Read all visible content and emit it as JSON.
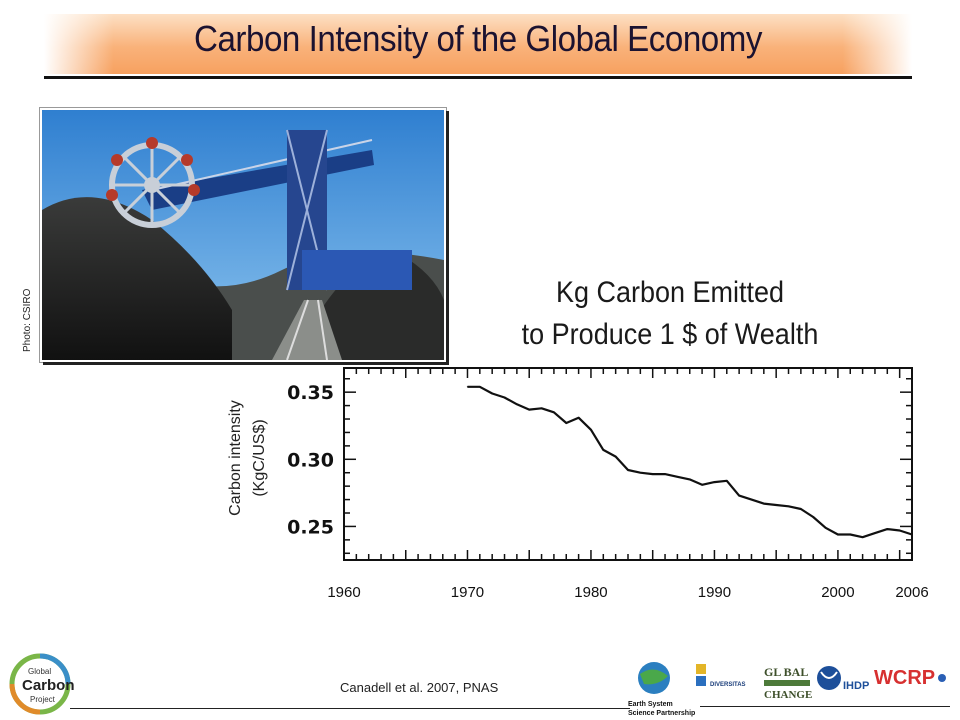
{
  "slide": {
    "title": "Carbon Intensity of the Global Economy",
    "photo_credit": "Photo: CSIRO",
    "subtitle_line1": "Kg Carbon Emitted",
    "subtitle_line2": "to Produce 1 $ of Wealth",
    "citation": "Canadell et al. 2007, PNAS"
  },
  "logos": {
    "gcp_line1": "Global",
    "gcp_line2": "Carbon",
    "gcp_line3": "Project",
    "essp_line1": "Earth System",
    "essp_line2": "Science Partnership",
    "diversitas": "DIVERSITAS",
    "global_change_1": "GL BAL",
    "global_change_2": "CHANGE",
    "ihdp": "IHDP",
    "wcrp": "WCRP"
  },
  "colors": {
    "line": "#111111",
    "title_band_top": "#fde0c4",
    "title_band_bottom": "#f7a160"
  },
  "chart_data": {
    "type": "line",
    "title": "",
    "ylabel_line1": "Carbon intensity",
    "ylabel_line2": "(KgC/US$)",
    "xlabel": "",
    "xlim": [
      1960,
      2006
    ],
    "ylim": [
      0.225,
      0.368
    ],
    "xticks": [
      1960,
      1970,
      1980,
      1990,
      2000,
      2006
    ],
    "yticks": [
      0.25,
      0.3,
      0.35
    ],
    "ytick_labels": [
      "0.25",
      "0.30",
      "0.35"
    ],
    "grid": false,
    "series": [
      {
        "x": [
          1970,
          1971,
          1972,
          1973,
          1974,
          1975,
          1976,
          1977,
          1978,
          1979,
          1980,
          1981,
          1982,
          1983,
          1984,
          1985,
          1986,
          1987,
          1988,
          1989,
          1990,
          1991,
          1992,
          1993,
          1994,
          1995,
          1996,
          1997,
          1998,
          1999,
          2000,
          2001,
          2002,
          2003,
          2004,
          2005,
          2006
        ],
        "values": [
          0.354,
          0.354,
          0.349,
          0.346,
          0.341,
          0.337,
          0.338,
          0.335,
          0.327,
          0.331,
          0.322,
          0.307,
          0.302,
          0.292,
          0.29,
          0.289,
          0.289,
          0.287,
          0.285,
          0.281,
          0.283,
          0.284,
          0.273,
          0.27,
          0.267,
          0.266,
          0.265,
          0.263,
          0.257,
          0.249,
          0.244,
          0.244,
          0.242,
          0.245,
          0.248,
          0.247,
          0.244
        ]
      }
    ]
  }
}
